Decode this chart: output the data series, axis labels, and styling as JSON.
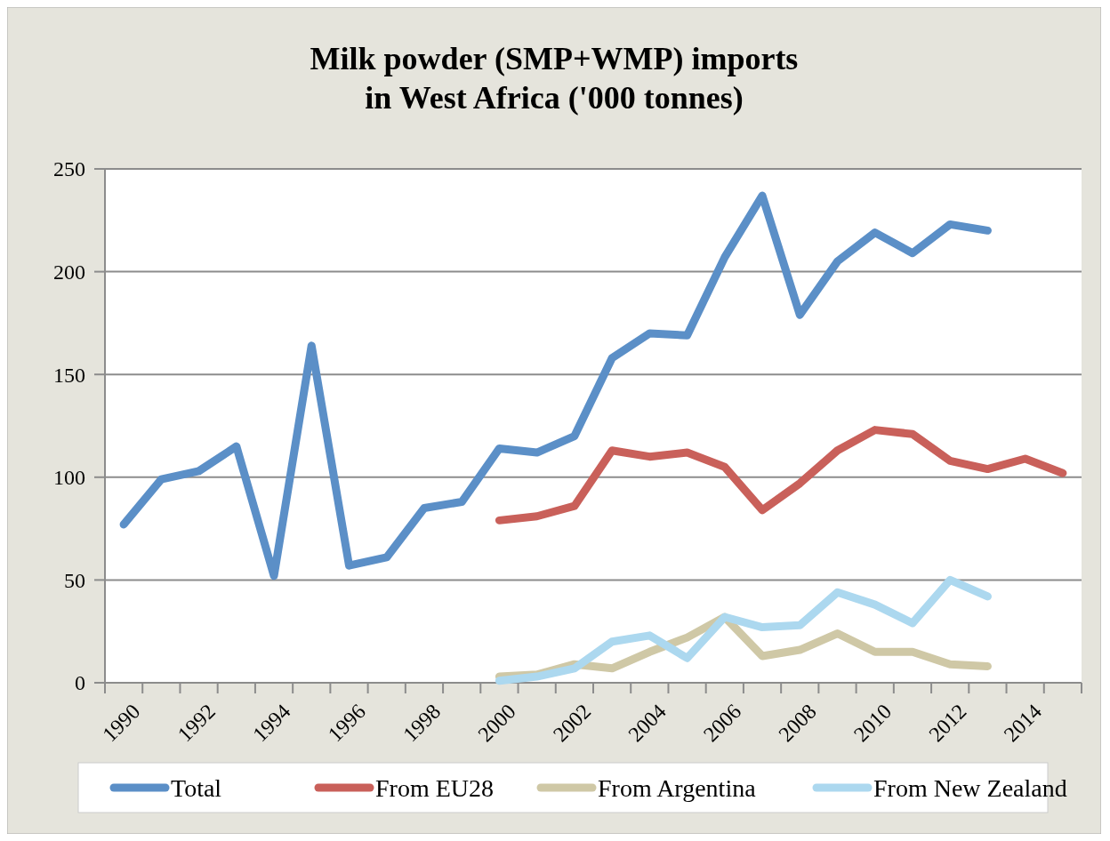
{
  "chart_data": {
    "type": "line",
    "title": "Milk powder (SMP+WMP) imports\nin West Africa ('000 tonnes)",
    "categories": [
      "1990",
      null,
      "1992",
      null,
      "1994",
      null,
      "1996",
      null,
      "1998",
      null,
      "2000",
      null,
      "2002",
      null,
      "2004",
      null,
      "2006",
      null,
      "2008",
      null,
      "2010",
      null,
      "2012",
      null,
      "2014",
      null
    ],
    "series": [
      {
        "name": "Total",
        "color": "#5b8fc7",
        "values": [
          77,
          99,
          103,
          115,
          52,
          164,
          57,
          61,
          85,
          88,
          114,
          112,
          120,
          158,
          170,
          169,
          207,
          237,
          179,
          205,
          219,
          209,
          223,
          220,
          null,
          null
        ]
      },
      {
        "name": "From EU28",
        "color": "#c9605a",
        "values": [
          null,
          null,
          null,
          null,
          null,
          null,
          null,
          null,
          null,
          null,
          79,
          81,
          86,
          113,
          110,
          112,
          105,
          84,
          97,
          113,
          123,
          121,
          108,
          104,
          109,
          102
        ]
      },
      {
        "name": "From Argentina",
        "color": "#cfc8a6",
        "values": [
          null,
          null,
          null,
          null,
          null,
          null,
          null,
          null,
          null,
          null,
          3,
          4,
          9,
          7,
          15,
          22,
          32,
          13,
          16,
          24,
          15,
          15,
          9,
          8,
          null,
          null
        ]
      },
      {
        "name": "From New Zealand",
        "color": "#acd8ef",
        "values": [
          null,
          null,
          null,
          null,
          null,
          null,
          null,
          null,
          null,
          null,
          1,
          3,
          7,
          20,
          23,
          12,
          32,
          27,
          28,
          44,
          38,
          29,
          50,
          42,
          null,
          null
        ]
      }
    ],
    "ylim": [
      0,
      250
    ],
    "yticks": [
      0,
      50,
      100,
      150,
      200,
      250
    ],
    "grid": "y",
    "legend": "bottom",
    "marker": "none",
    "line_style": "solid"
  }
}
